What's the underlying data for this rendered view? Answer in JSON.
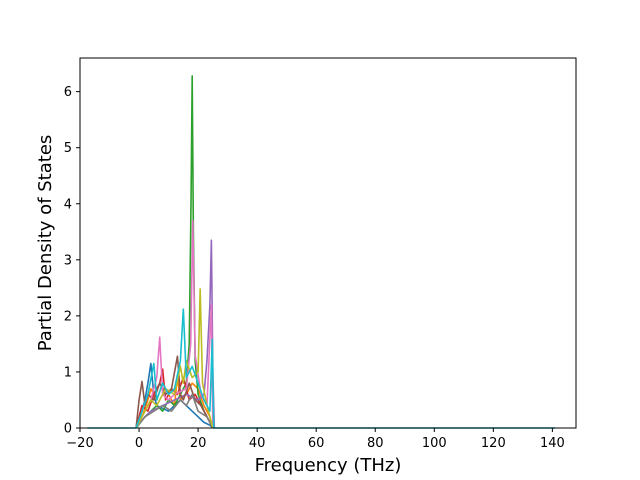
{
  "chart_data": {
    "type": "line",
    "title": "",
    "xlabel": "Frequency (THz)",
    "ylabel": "Partial Density of States",
    "xlim": [
      -20,
      148
    ],
    "ylim": [
      0,
      6.6
    ],
    "x_ticks": [
      -20,
      0,
      20,
      40,
      60,
      80,
      100,
      120,
      140
    ],
    "y_ticks": [
      0,
      1,
      2,
      3,
      4,
      5,
      6
    ],
    "grid": false,
    "legend": "none",
    "x_range_of_data": [
      -17.5,
      141
    ],
    "series": [
      {
        "color": "#1f77b4",
        "x": [
          -1,
          1,
          2,
          3,
          4,
          5,
          6,
          8,
          10,
          12,
          14,
          16,
          18,
          20,
          22,
          24,
          25
        ],
        "y": [
          0,
          0.3,
          0.5,
          0.8,
          1.15,
          0.6,
          0.4,
          0.35,
          0.3,
          0.4,
          0.5,
          0.4,
          0.3,
          0.2,
          0.1,
          0.05,
          0
        ]
      },
      {
        "color": "#ff7f0e",
        "x": [
          -1,
          1,
          3,
          4,
          6,
          8,
          10,
          12,
          13,
          14,
          16,
          18,
          20,
          22,
          24,
          25
        ],
        "y": [
          0,
          0.2,
          0.5,
          0.7,
          0.5,
          0.8,
          0.6,
          0.4,
          0.9,
          0.5,
          0.6,
          0.8,
          0.7,
          0.4,
          0.2,
          0
        ]
      },
      {
        "color": "#2ca02c",
        "x": [
          -1,
          2,
          4,
          6,
          8,
          10,
          12,
          14,
          16,
          17,
          17.6,
          18,
          18.4,
          19,
          20,
          22,
          24,
          25
        ],
        "y": [
          0,
          0.2,
          0.3,
          0.4,
          0.3,
          0.5,
          0.4,
          0.6,
          0.8,
          1.5,
          4.0,
          6.28,
          3.5,
          1.2,
          0.6,
          0.3,
          0.1,
          0
        ]
      },
      {
        "color": "#d62728",
        "x": [
          -1,
          1,
          3,
          5,
          7,
          8,
          9,
          11,
          13,
          15,
          17,
          19,
          21,
          23,
          25
        ],
        "y": [
          0,
          0.4,
          0.3,
          0.6,
          0.8,
          1.05,
          0.5,
          0.7,
          0.6,
          0.9,
          0.5,
          0.6,
          0.4,
          0.2,
          0
        ]
      },
      {
        "color": "#9467bd",
        "x": [
          -1,
          2,
          4,
          8,
          12,
          16,
          20,
          22,
          23,
          24,
          24.5,
          25,
          25.5
        ],
        "y": [
          0,
          0.2,
          0.3,
          0.4,
          0.5,
          0.6,
          0.5,
          0.6,
          1.2,
          2.2,
          3.35,
          1.0,
          0
        ]
      },
      {
        "color": "#8c564b",
        "x": [
          -1,
          0,
          1,
          2,
          3,
          5,
          7,
          9,
          11,
          13,
          14,
          15,
          17,
          19,
          21,
          23,
          25
        ],
        "y": [
          0,
          0.5,
          0.83,
          0.4,
          0.6,
          0.5,
          0.8,
          0.6,
          0.7,
          1.28,
          0.6,
          0.5,
          0.8,
          0.5,
          0.4,
          0.2,
          0
        ]
      },
      {
        "color": "#e377c2",
        "x": [
          -1,
          2,
          4,
          6,
          7,
          8,
          10,
          12,
          16,
          17.5,
          18.2,
          19,
          21,
          23,
          24.5,
          25
        ],
        "y": [
          0,
          0.3,
          0.5,
          0.9,
          1.62,
          0.6,
          0.5,
          0.6,
          0.7,
          1.5,
          3.7,
          1.3,
          0.6,
          0.4,
          2.2,
          0
        ]
      },
      {
        "color": "#7f7f7f",
        "x": [
          -1,
          2,
          5,
          8,
          11,
          14,
          16,
          18,
          20,
          23,
          25
        ],
        "y": [
          0,
          0.2,
          0.3,
          0.4,
          0.3,
          0.5,
          0.4,
          0.6,
          0.3,
          0.2,
          0
        ]
      },
      {
        "color": "#bcbd22",
        "x": [
          -1,
          2,
          4,
          6,
          9,
          12,
          14,
          15,
          16,
          18,
          20,
          20.7,
          21.5,
          23,
          25
        ],
        "y": [
          0,
          0.3,
          0.5,
          0.4,
          0.7,
          0.6,
          1.1,
          0.8,
          1.2,
          0.9,
          1.0,
          2.48,
          0.8,
          0.4,
          0
        ]
      },
      {
        "color": "#17becf",
        "x": [
          -1,
          1,
          3,
          5,
          6,
          8,
          10,
          12,
          14,
          15,
          16,
          18,
          20,
          22,
          24,
          24.8,
          25.3,
          141
        ],
        "y": [
          0,
          0.3,
          0.6,
          1.15,
          0.5,
          0.8,
          0.6,
          0.7,
          1.2,
          2.12,
          0.9,
          1.1,
          0.8,
          0.5,
          0.3,
          1.58,
          0,
          0
        ]
      },
      {
        "color": "#17becf",
        "x": [
          -17.5,
          -1
        ],
        "y": [
          0,
          0
        ]
      }
    ]
  }
}
